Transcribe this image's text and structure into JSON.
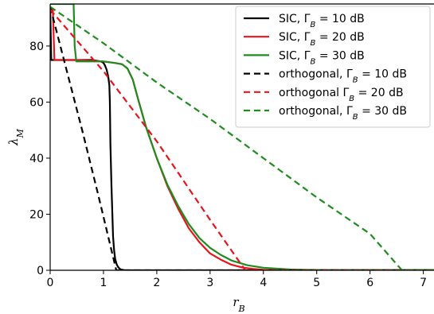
{
  "chart_data": {
    "type": "line",
    "xlabel": "r_B",
    "ylabel": "λ_M",
    "xlim": [
      0,
      7.2
    ],
    "ylim": [
      0,
      95
    ],
    "xticks": [
      0,
      1,
      2,
      3,
      4,
      5,
      6,
      7
    ],
    "yticks": [
      0,
      20,
      40,
      60,
      80
    ],
    "grid": false,
    "legend_placement": "top-right",
    "series": [
      {
        "name": "SIC, Γ_B = 10 dB",
        "legend": {
          "main": "SIC, Γ",
          "sub": "B",
          "tail": " = 10 dB"
        },
        "color": "#000000",
        "dash": "solid",
        "x": [
          0.0,
          0.02,
          0.05,
          0.5,
          0.8,
          0.95,
          1.0,
          1.03,
          1.06,
          1.09,
          1.11,
          1.12,
          1.13,
          1.15,
          1.17,
          1.18,
          1.2,
          1.22,
          1.25,
          1.28,
          1.32,
          1.4,
          7.2
        ],
        "y": [
          94,
          75,
          75,
          75,
          75,
          74.5,
          74,
          73,
          71.5,
          69,
          66,
          60,
          45,
          30,
          18,
          12,
          7,
          4,
          2,
          1,
          0.3,
          0,
          0
        ]
      },
      {
        "name": "SIC, Γ_B = 20 dB",
        "legend": {
          "main": "SIC, Γ",
          "sub": "B",
          "tail": " = 20 dB"
        },
        "color": "#e8141c",
        "dash": "solid",
        "x": [
          0.0,
          0.05,
          0.08,
          0.5,
          1.0,
          1.2,
          1.35,
          1.45,
          1.55,
          1.65,
          1.8,
          2.0,
          2.2,
          2.4,
          2.6,
          2.8,
          3.0,
          3.2,
          3.4,
          3.6,
          3.8,
          4.0,
          4.3,
          7.2
        ],
        "y": [
          93,
          93,
          75,
          75,
          74.5,
          74,
          73.5,
          72,
          68,
          61,
          51,
          40,
          30,
          22,
          15,
          10,
          6,
          3.8,
          2,
          1,
          0.5,
          0.2,
          0,
          0
        ]
      },
      {
        "name": "SIC, Γ_B = 30 dB",
        "legend": {
          "main": "SIC, Γ",
          "sub": "B",
          "tail": " = 30 dB"
        },
        "color": "#1e8c1e",
        "dash": "solid",
        "x": [
          0.0,
          0.44,
          0.46,
          0.49,
          0.8,
          1.0,
          1.2,
          1.35,
          1.45,
          1.55,
          1.65,
          1.8,
          2.0,
          2.2,
          2.4,
          2.6,
          2.8,
          3.0,
          3.2,
          3.4,
          3.7,
          4.0,
          4.5,
          5.0,
          7.2
        ],
        "y": [
          95,
          95,
          80,
          74.5,
          74.5,
          74.5,
          74,
          73.5,
          72,
          68,
          61,
          51,
          40,
          30.5,
          23,
          16.5,
          11.5,
          8,
          5.5,
          3.5,
          1.8,
          0.9,
          0.3,
          0.1,
          0.1
        ]
      },
      {
        "name": "orthogonal, Γ_B = 10 dB",
        "legend": {
          "main": "orthogonal, Γ",
          "sub": "B",
          "tail": " = 10 dB"
        },
        "color": "#000000",
        "dash": "dashed",
        "x": [
          0.0,
          0.3,
          0.6,
          0.9,
          1.24,
          7.2
        ],
        "y": [
          94,
          72,
          50,
          27,
          0,
          0
        ]
      },
      {
        "name": "orthogonal Γ_B = 20 dB",
        "legend": {
          "main": "orthogonal Γ",
          "sub": "B",
          "tail": " = 20 dB"
        },
        "color": "#e8141c",
        "dash": "dashed",
        "x": [
          0.0,
          1.0,
          2.0,
          3.0,
          3.66,
          7.2
        ],
        "y": [
          93,
          71,
          46,
          18,
          0,
          0
        ]
      },
      {
        "name": "orthogonal, Γ_B = 30 dB",
        "legend": {
          "main": "orthogonal, Γ",
          "sub": "B",
          "tail": " = 30 dB"
        },
        "color": "#1e8c1e",
        "dash": "dashed",
        "x": [
          0.0,
          1.0,
          2.0,
          3.0,
          4.0,
          5.0,
          6.0,
          6.6,
          7.2
        ],
        "y": [
          94,
          81,
          67,
          54,
          40,
          26,
          13,
          0,
          0
        ]
      }
    ]
  }
}
